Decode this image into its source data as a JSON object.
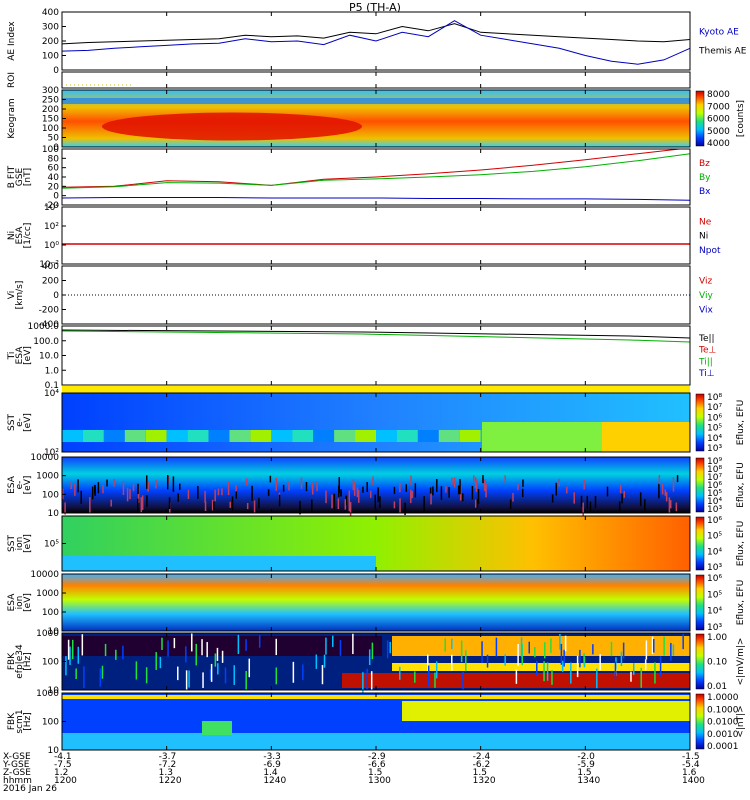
{
  "title": "P5 (TH-A)",
  "chart_data": {
    "type": "line",
    "x_range": [
      "12:00",
      "14:00"
    ],
    "x_ticks": [
      "1200",
      "1220",
      "1240",
      "1300",
      "1320",
      "1340",
      "1400"
    ],
    "panels": [
      {
        "id": "ae",
        "ylabel": "AE Index",
        "y_ticks": [
          "400",
          "300",
          "200",
          "100",
          "0"
        ],
        "ylim": [
          0,
          400
        ],
        "legend": [
          {
            "name": "Kyoto AE",
            "color": "#0000c0"
          },
          {
            "name": "Themis AE",
            "color": "#000000"
          }
        ],
        "series": [
          {
            "name": "Themis AE",
            "color": "#000000",
            "x": [
              0,
              5,
              10,
              15,
              20,
              25,
              30,
              35,
              40,
              45,
              50,
              55,
              60,
              65,
              70,
              75,
              80,
              85,
              90,
              95,
              100,
              105,
              110,
              115,
              120
            ],
            "y": [
              180,
              190,
              195,
              200,
              205,
              210,
              215,
              240,
              230,
              235,
              220,
              260,
              250,
              300,
              270,
              320,
              260,
              250,
              240,
              230,
              220,
              210,
              200,
              195,
              210
            ]
          },
          {
            "name": "Kyoto AE",
            "color": "#0000c0",
            "x": [
              0,
              5,
              10,
              15,
              20,
              25,
              30,
              35,
              40,
              45,
              50,
              55,
              60,
              65,
              70,
              75,
              80,
              85,
              90,
              95,
              100,
              105,
              110,
              115,
              120
            ],
            "y": [
              130,
              135,
              150,
              160,
              170,
              180,
              185,
              215,
              195,
              200,
              175,
              240,
              200,
              260,
              230,
              340,
              240,
              210,
              180,
              150,
              100,
              60,
              40,
              70,
              150
            ]
          }
        ]
      },
      {
        "id": "roi",
        "ylabel": "ROI",
        "y_ticks": [],
        "legend": []
      },
      {
        "id": "keogram",
        "ylabel": "Keogram",
        "y_ticks": [
          "300",
          "250",
          "200",
          "150",
          "100",
          "50",
          "0"
        ],
        "colorbar": {
          "ticks": [
            "8000",
            "7000",
            "6000",
            "5000",
            "4000"
          ],
          "label": "[counts]"
        },
        "legend": []
      },
      {
        "id": "bfield",
        "ylabel": "B FIT\nGSE\n[nT]",
        "y_ticks": [
          "100",
          "80",
          "60",
          "40",
          "20",
          "0",
          "-20"
        ],
        "ylim": [
          -20,
          100
        ],
        "legend": [
          {
            "name": "Bz",
            "color": "#d00000"
          },
          {
            "name": "By",
            "color": "#00b000"
          },
          {
            "name": "Bx",
            "color": "#0000c0"
          }
        ],
        "series": [
          {
            "name": "Bz",
            "color": "#d00000",
            "x": [
              0,
              10,
              20,
              30,
              40,
              50,
              60,
              70,
              80,
              90,
              100,
              110,
              118
            ],
            "y": [
              18,
              20,
              32,
              30,
              22,
              35,
              40,
              47,
              55,
              65,
              77,
              90,
              100
            ]
          },
          {
            "name": "By",
            "color": "#00b000",
            "x": [
              0,
              10,
              20,
              30,
              40,
              50,
              60,
              70,
              80,
              90,
              100,
              110,
              120
            ],
            "y": [
              16,
              19,
              28,
              27,
              22,
              33,
              36,
              40,
              45,
              52,
              62,
              75,
              90
            ]
          },
          {
            "name": "Bx",
            "color": "#0000c0",
            "x": [
              0,
              10,
              20,
              30,
              40,
              50,
              60,
              70,
              80,
              90,
              100,
              110,
              120
            ],
            "y": [
              -5,
              -4,
              -4,
              -4,
              -5,
              -5,
              -5,
              -6,
              -6,
              -7,
              -7,
              -8,
              -10
            ]
          }
        ]
      },
      {
        "id": "ni",
        "ylabel": "Ni\nESA\n[1/cc]",
        "y_ticks": [
          "10⁴",
          "10²",
          "10⁰",
          "10⁻²"
        ],
        "legend": [
          {
            "name": "Ne",
            "color": "#d00000"
          },
          {
            "name": "Ni",
            "color": "#000000"
          },
          {
            "name": "Npot",
            "color": "#0000c0"
          }
        ]
      },
      {
        "id": "vi",
        "ylabel": "Vi\n[km/s]",
        "y_ticks": [
          "400",
          "200",
          "0",
          "-200",
          "-400"
        ],
        "ylim": [
          -400,
          400
        ],
        "legend": [
          {
            "name": "Viz",
            "color": "#d00000"
          },
          {
            "name": "Viy",
            "color": "#00b000"
          },
          {
            "name": "Vix",
            "color": "#0000c0"
          }
        ]
      },
      {
        "id": "ti",
        "ylabel": "Ti\nESA\n[eV]",
        "y_ticks": [
          "1000.0",
          "100.0",
          "10.0",
          "1.0",
          "0.1"
        ],
        "legend": [
          {
            "name": "Te||",
            "color": "#000000"
          },
          {
            "name": "Te⊥",
            "color": "#d00000"
          },
          {
            "name": "Ti||",
            "color": "#00b000"
          },
          {
            "name": "Ti⊥",
            "color": "#0000c0"
          }
        ]
      },
      {
        "id": "sst_e",
        "ylabel": "SST\ne-\n[eV]",
        "y_ticks": [
          "10⁴",
          "10²"
        ],
        "colorbar": {
          "ticks": [
            "10⁸",
            "10⁷",
            "10⁶",
            "10⁵",
            "10⁴",
            "10³"
          ],
          "label": "Eflux, EFU"
        },
        "legend": []
      },
      {
        "id": "esa_e",
        "ylabel": "ESA\ne-\n[eV]",
        "y_ticks": [
          "10000",
          "1000",
          "100",
          "10"
        ],
        "colorbar": {
          "ticks": [
            "10⁹",
            "10⁸",
            "10⁷",
            "10⁶",
            "10⁵",
            "10⁴",
            "10³"
          ],
          "label": "Eflux, EFU"
        },
        "legend": []
      },
      {
        "id": "sst_i",
        "ylabel": "SST\nion\n[eV]",
        "y_ticks": [
          "10⁵"
        ],
        "colorbar": {
          "ticks": [
            "10⁶",
            "10⁵",
            "10⁴",
            "10³"
          ],
          "label": "Eflux, EFU"
        },
        "legend": []
      },
      {
        "id": "esa_i",
        "ylabel": "ESA\nion\n[eV]",
        "y_ticks": [
          "10000",
          "1000",
          "100",
          "10"
        ],
        "colorbar": {
          "ticks": [
            "10⁶",
            "10⁵",
            "10⁴",
            "10³"
          ],
          "label": "Eflux, EFU"
        },
        "legend": []
      },
      {
        "id": "fbk_e",
        "ylabel": "FBK\nefp|e34\n[Hz]",
        "y_ticks": [
          "1000",
          "100",
          "10"
        ],
        "colorbar": {
          "ticks": [
            "1.00",
            "0.10",
            "0.01"
          ],
          "label": "<|mV/m|>"
        },
        "legend": []
      },
      {
        "id": "fbk_b",
        "ylabel": "FBK\nscm1\n[Hz]",
        "y_ticks": [
          "1000",
          "100",
          "10"
        ],
        "colorbar": {
          "ticks": [
            "1.0000",
            "0.1000",
            "0.0100",
            "0.0010",
            "0.0001"
          ],
          "label": "<|nT|>"
        },
        "legend": []
      }
    ],
    "footer": {
      "row_labels": [
        "X-GSE",
        "Y-GSE",
        "Z-GSE",
        "hhmm",
        "2016 Jan 26"
      ],
      "columns": [
        [
          "-4.1",
          "-7.5",
          "1.2",
          "1200"
        ],
        [
          "-3.7",
          "-7.2",
          "1.3",
          "1220"
        ],
        [
          "-3.3",
          "-6.9",
          "1.4",
          "1240"
        ],
        [
          "-2.9",
          "-6.6",
          "1.5",
          "1300"
        ],
        [
          "-2.4",
          "-6.2",
          "1.5",
          "1320"
        ],
        [
          "-2.0",
          "-5.9",
          "1.5",
          "1340"
        ],
        [
          "-1.5",
          "-5.4",
          "1.6",
          "1400"
        ]
      ]
    }
  }
}
